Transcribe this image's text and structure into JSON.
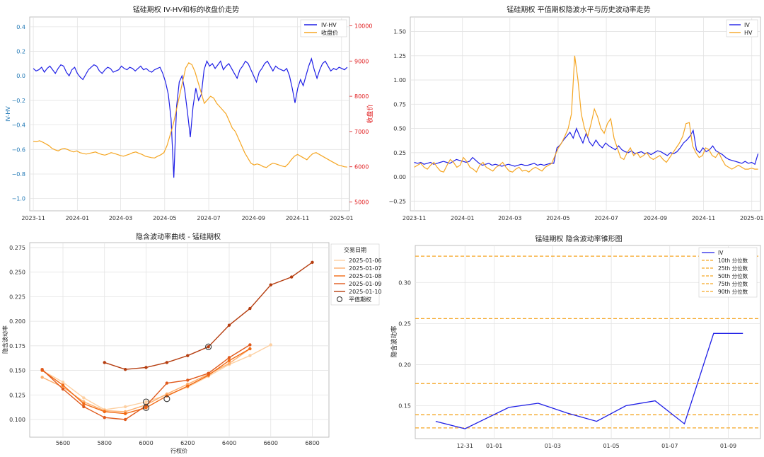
{
  "chart_data": [
    {
      "type": "line",
      "title": "锰硅期权 IV-HV和标的收盘价走势",
      "xlabel": "",
      "ylabel": "IV-HV",
      "y2label": "收盘价",
      "x_ticks": [
        "2023-11",
        "2024-01",
        "2024-03",
        "2024-05",
        "2024-07",
        "2024-09",
        "2024-11",
        "2025-01"
      ],
      "y_ticks": [
        "0.4",
        "0.2",
        "0.0",
        "−0.2",
        "−0.4",
        "−0.6",
        "−0.8",
        "−1.0"
      ],
      "y2_ticks": [
        "10000",
        "9000",
        "8000",
        "7000",
        "6000",
        "5000"
      ],
      "ylim": [
        -1.1,
        0.48
      ],
      "y2lim": [
        4750,
        10250
      ],
      "x_start": "2023-10-27",
      "x_end": "2025-01-12",
      "legend_position": "upper right",
      "colors": {
        "IV-HV": "#1f1fe6",
        "收盘价": "#f5a623",
        "y2axis": "#e0191b"
      },
      "series": [
        {
          "name": "IV-HV",
          "axis": "left",
          "color": "#1f1fe6",
          "x_start": "2023-11-01",
          "x_end": "2025-01-09",
          "values": [
            0.06,
            0.04,
            0.05,
            0.07,
            0.03,
            0.06,
            0.08,
            0.05,
            0.02,
            0.06,
            0.09,
            0.08,
            0.03,
            0.0,
            0.05,
            0.07,
            0.02,
            -0.01,
            -0.03,
            0.01,
            0.05,
            0.07,
            0.09,
            0.08,
            0.04,
            0.02,
            0.05,
            0.07,
            0.06,
            0.03,
            0.04,
            0.05,
            0.08,
            0.06,
            0.05,
            0.07,
            0.06,
            0.04,
            0.06,
            0.08,
            0.05,
            0.06,
            0.04,
            0.03,
            0.05,
            0.06,
            0.07,
            0.02,
            -0.05,
            -0.15,
            -0.35,
            -0.83,
            -0.25,
            -0.05,
            0.0,
            -0.12,
            -0.3,
            -0.5,
            -0.25,
            -0.1,
            -0.2,
            -0.15,
            0.05,
            0.12,
            0.08,
            0.1,
            0.06,
            0.09,
            0.12,
            0.05,
            0.08,
            0.1,
            0.06,
            0.02,
            -0.02,
            0.05,
            0.08,
            0.12,
            0.1,
            0.05,
            0.0,
            -0.05,
            0.03,
            0.06,
            0.1,
            0.12,
            0.08,
            0.04,
            0.08,
            0.06,
            0.05,
            0.04,
            0.06,
            0.0,
            -0.1,
            -0.22,
            -0.1,
            -0.03,
            -0.08,
            0.0,
            0.08,
            0.14,
            0.05,
            -0.02,
            0.05,
            0.1,
            0.12,
            0.08,
            0.04,
            0.06,
            0.05,
            0.07,
            0.06,
            0.05,
            0.07
          ]
        },
        {
          "name": "收盘价",
          "axis": "right",
          "color": "#f5a623",
          "x_start": "2023-11-01",
          "x_end": "2025-01-09",
          "values": [
            6720,
            6710,
            6740,
            6700,
            6650,
            6600,
            6520,
            6480,
            6450,
            6500,
            6520,
            6490,
            6450,
            6420,
            6450,
            6400,
            6380,
            6360,
            6380,
            6400,
            6420,
            6380,
            6350,
            6330,
            6360,
            6400,
            6380,
            6350,
            6320,
            6300,
            6330,
            6360,
            6400,
            6420,
            6380,
            6350,
            6300,
            6280,
            6260,
            6250,
            6300,
            6340,
            6400,
            6600,
            6900,
            7200,
            7600,
            8000,
            8400,
            8800,
            8950,
            8900,
            8700,
            8400,
            8100,
            7800,
            7900,
            8000,
            7950,
            7800,
            7700,
            7600,
            7500,
            7300,
            7100,
            7000,
            6800,
            6600,
            6400,
            6250,
            6100,
            6050,
            6080,
            6050,
            6000,
            5980,
            6050,
            6100,
            6080,
            6050,
            6020,
            6000,
            6080,
            6200,
            6300,
            6350,
            6300,
            6250,
            6200,
            6300,
            6380,
            6400,
            6350,
            6300,
            6250,
            6200,
            6150,
            6100,
            6050,
            6030,
            6000,
            5990
          ]
        }
      ]
    },
    {
      "type": "line",
      "title": "锰硅期权 平值期权隐波水平与历史波动率走势",
      "xlabel": "",
      "ylabel": "",
      "x_ticks": [
        "2023-11",
        "2024-01",
        "2024-03",
        "2024-05",
        "2024-07",
        "2024-09",
        "2024-11",
        "2025-01"
      ],
      "y_ticks": [
        "1.50",
        "1.25",
        "1.00",
        "0.75",
        "0.50",
        "0.25",
        "0.00",
        "−0.25"
      ],
      "ylim": [
        -0.35,
        1.65
      ],
      "x_start": "2023-10-27",
      "x_end": "2025-01-12",
      "legend_position": "upper right",
      "colors": {
        "IV": "#1f1fe6",
        "HV": "#f5a623"
      },
      "series": [
        {
          "name": "IV",
          "color": "#1f1fe6",
          "x_start": "2023-11-01",
          "x_end": "2025-01-09",
          "values": [
            0.15,
            0.14,
            0.15,
            0.13,
            0.14,
            0.15,
            0.13,
            0.14,
            0.15,
            0.16,
            0.15,
            0.14,
            0.16,
            0.18,
            0.17,
            0.16,
            0.15,
            0.16,
            0.2,
            0.17,
            0.14,
            0.12,
            0.13,
            0.14,
            0.12,
            0.13,
            0.12,
            0.11,
            0.12,
            0.13,
            0.12,
            0.11,
            0.12,
            0.13,
            0.12,
            0.12,
            0.13,
            0.14,
            0.12,
            0.13,
            0.12,
            0.13,
            0.14,
            0.14,
            0.3,
            0.33,
            0.38,
            0.42,
            0.46,
            0.4,
            0.5,
            0.42,
            0.35,
            0.45,
            0.36,
            0.32,
            0.38,
            0.33,
            0.3,
            0.35,
            0.32,
            0.3,
            0.28,
            0.32,
            0.28,
            0.26,
            0.25,
            0.27,
            0.24,
            0.25,
            0.26,
            0.24,
            0.25,
            0.23,
            0.25,
            0.27,
            0.26,
            0.24,
            0.22,
            0.25,
            0.24,
            0.26,
            0.3,
            0.35,
            0.38,
            0.42,
            0.48,
            0.28,
            0.25,
            0.3,
            0.26,
            0.28,
            0.32,
            0.27,
            0.25,
            0.23,
            0.2,
            0.18,
            0.17,
            0.16,
            0.15,
            0.14,
            0.16,
            0.14,
            0.15,
            0.13,
            0.24
          ]
        },
        {
          "name": "HV",
          "color": "#f5a623",
          "x_start": "2023-11-01",
          "x_end": "2025-01-09",
          "values": [
            0.1,
            0.12,
            0.14,
            0.1,
            0.08,
            0.12,
            0.15,
            0.1,
            0.06,
            0.05,
            0.12,
            0.18,
            0.15,
            0.1,
            0.12,
            0.2,
            0.16,
            0.1,
            0.08,
            0.05,
            0.12,
            0.15,
            0.1,
            0.08,
            0.06,
            0.1,
            0.12,
            0.15,
            0.1,
            0.06,
            0.05,
            0.08,
            0.1,
            0.06,
            0.07,
            0.05,
            0.08,
            0.1,
            0.08,
            0.06,
            0.1,
            0.12,
            0.14,
            0.22,
            0.3,
            0.35,
            0.42,
            0.5,
            0.65,
            1.25,
            1.0,
            0.65,
            0.5,
            0.42,
            0.55,
            0.7,
            0.62,
            0.5,
            0.45,
            0.55,
            0.6,
            0.4,
            0.3,
            0.2,
            0.18,
            0.25,
            0.3,
            0.22,
            0.25,
            0.2,
            0.22,
            0.25,
            0.2,
            0.18,
            0.2,
            0.22,
            0.18,
            0.15,
            0.2,
            0.25,
            0.3,
            0.35,
            0.42,
            0.55,
            0.56,
            0.32,
            0.25,
            0.2,
            0.22,
            0.3,
            0.28,
            0.22,
            0.2,
            0.25,
            0.18,
            0.12,
            0.1,
            0.08,
            0.1,
            0.12,
            0.1,
            0.08,
            0.08,
            0.09,
            0.08,
            0.08
          ]
        }
      ]
    },
    {
      "type": "line",
      "title": "隐含波动率曲线 - 锰硅期权",
      "xlabel": "行权价",
      "ylabel": "隐含波动率",
      "xlim": [
        5440,
        6880
      ],
      "ylim": [
        0.082,
        0.28
      ],
      "x_ticks": [
        "5600",
        "5800",
        "6000",
        "6200",
        "6400",
        "6600",
        "6800"
      ],
      "y_ticks": [
        "0.275",
        "0.250",
        "0.225",
        "0.200",
        "0.175",
        "0.150",
        "0.125",
        "0.100"
      ],
      "legend_title": "交易日期",
      "legend_position": "outside upper right",
      "atm_label": "平值期权",
      "series": [
        {
          "name": "2025-01-06",
          "color": "#fdd0a2",
          "x": [
            5500,
            5600,
            5700,
            5800,
            5900,
            6000,
            6100,
            6200,
            6300,
            6400,
            6500,
            6600
          ],
          "y": [
            0.15,
            0.138,
            0.122,
            0.11,
            0.113,
            0.118,
            0.125,
            0.133,
            0.144,
            0.156,
            0.165,
            0.176
          ]
        },
        {
          "name": "2025-01-07",
          "color": "#fdae6b",
          "x": [
            5500,
            5600,
            5700,
            5800,
            5900,
            6000,
            6100,
            6200,
            6300,
            6400,
            6500
          ],
          "y": [
            0.143,
            0.133,
            0.118,
            0.109,
            0.108,
            0.115,
            0.126,
            0.136,
            0.146,
            0.157,
            0.172
          ]
        },
        {
          "name": "2025-01-08",
          "color": "#f16913",
          "x": [
            5500,
            5600,
            5700,
            5800,
            5900,
            6000,
            6100,
            6200,
            6300,
            6400,
            6500
          ],
          "y": [
            0.15,
            0.135,
            0.116,
            0.108,
            0.106,
            0.112,
            0.124,
            0.134,
            0.145,
            0.16,
            0.172
          ]
        },
        {
          "name": "2025-01-09",
          "color": "#e0591b",
          "x": [
            5500,
            5600,
            5700,
            5800,
            5900,
            6000,
            6100,
            6200,
            6300,
            6400,
            6500
          ],
          "y": [
            0.151,
            0.131,
            0.113,
            0.102,
            0.1,
            0.114,
            0.137,
            0.14,
            0.147,
            0.163,
            0.176
          ]
        },
        {
          "name": "2025-01-10",
          "color": "#b53d0f",
          "x": [
            5800,
            5900,
            6000,
            6100,
            6200,
            6300,
            6400,
            6500,
            6600,
            6700,
            6800
          ],
          "y": [
            0.158,
            0.151,
            0.153,
            0.158,
            0.165,
            0.174,
            0.196,
            0.213,
            0.237,
            0.245,
            0.26
          ]
        }
      ],
      "atm_points": [
        {
          "x": 6000,
          "y": 0.112
        },
        {
          "x": 6000,
          "y": 0.118
        },
        {
          "x": 6100,
          "y": 0.121
        },
        {
          "x": 6300,
          "y": 0.174
        }
      ]
    },
    {
      "type": "line",
      "title": "锰硅期权 隐含波动率锥形图",
      "xlabel": "",
      "ylabel": "隐含波动率",
      "ylim": [
        0.11,
        0.345
      ],
      "x_ticks": [
        "12-31",
        "01-01",
        "01-03",
        "01-05",
        "01-07",
        "01-09"
      ],
      "x_tick_days": [
        -0.5,
        0.5,
        2.5,
        4.5,
        6.5,
        8.5
      ],
      "y_ticks": [
        "0.30",
        "0.25",
        "0.20",
        "0.15"
      ],
      "legend_position": "upper right",
      "series": [
        {
          "name": "IV",
          "color": "#1f1fe6",
          "x_days": [
            -1.5,
            -0.5,
            1,
            2,
            3,
            4,
            5,
            6,
            7,
            8,
            9
          ],
          "values": [
            0.131,
            0.122,
            0.148,
            0.153,
            0.141,
            0.131,
            0.15,
            0.156,
            0.128,
            0.238,
            0.238
          ]
        }
      ],
      "hlines": [
        {
          "name": "10th 分位数",
          "value": 0.123,
          "color": "#f5a623"
        },
        {
          "name": "25th 分位数",
          "value": 0.139,
          "color": "#f5a623"
        },
        {
          "name": "50th 分位数",
          "value": 0.177,
          "color": "#f5a623"
        },
        {
          "name": "75th 分位数",
          "value": 0.256,
          "color": "#f5a623"
        },
        {
          "name": "90th 分位数",
          "value": 0.332,
          "color": "#f5a623"
        }
      ]
    }
  ]
}
